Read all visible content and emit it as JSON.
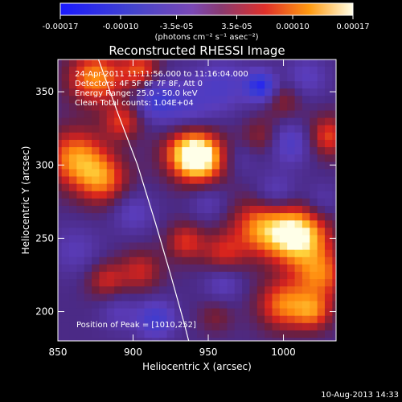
{
  "chart_data": {
    "type": "heatmap",
    "title": "Reconstructed RHESSI Image",
    "xlabel": "Heliocentric X (arcsec)",
    "ylabel": "Heliocentric Y (arcsec)",
    "xlim": [
      850,
      1035
    ],
    "ylim": [
      180,
      372
    ],
    "x_ticks": [
      850,
      900,
      950,
      1000
    ],
    "y_ticks": [
      200,
      250,
      300,
      350
    ],
    "colorbar": {
      "unit_label": "(photons cm⁻² s⁻¹ asec⁻²)",
      "range": [
        -0.00017,
        0.00017
      ],
      "tick_labels": [
        "-0.00017",
        "-0.00010",
        "-3.5e-05",
        "3.5e-05",
        "0.00010",
        "0.00017"
      ],
      "tick_values": [
        -0.00017,
        -0.0001,
        -3.5e-05,
        3.5e-05,
        0.0001,
        0.00017
      ]
    },
    "annotations": [
      "24-Apr-2011 11:11:56.000 to 11:16:04.000",
      "Detectors: 4F 5F 6F 7F 8F, Att 0",
      "Energy Range: 25.0 - 50.0 keV",
      "Clean     Total counts: 1.04E+04"
    ],
    "peak_label": "Position of Peak = [1010,252]",
    "peak": {
      "x": 1010,
      "y": 252
    },
    "limb_curve": [
      {
        "x": 877,
        "y": 372
      },
      {
        "x": 890,
        "y": 335
      },
      {
        "x": 903,
        "y": 300
      },
      {
        "x": 915,
        "y": 260
      },
      {
        "x": 925,
        "y": 225
      },
      {
        "x": 934,
        "y": 192
      },
      {
        "x": 937,
        "y": 180
      }
    ],
    "blobs": [
      {
        "x": 1010,
        "y": 252,
        "v": 0.00017,
        "s": 14
      },
      {
        "x": 985,
        "y": 258,
        "v": 0.00011,
        "s": 14
      },
      {
        "x": 1025,
        "y": 225,
        "v": 0.0001,
        "s": 12
      },
      {
        "x": 960,
        "y": 240,
        "v": 7e-05,
        "s": 10
      },
      {
        "x": 1000,
        "y": 205,
        "v": 0.00011,
        "s": 12
      },
      {
        "x": 1030,
        "y": 320,
        "v": 9e-05,
        "s": 10
      },
      {
        "x": 945,
        "y": 305,
        "v": 0.00016,
        "s": 12
      },
      {
        "x": 935,
        "y": 310,
        "v": 9e-05,
        "s": 12
      },
      {
        "x": 862,
        "y": 305,
        "v": 0.00012,
        "s": 14
      },
      {
        "x": 880,
        "y": 290,
        "v": 0.0001,
        "s": 12
      },
      {
        "x": 893,
        "y": 330,
        "v": 8e-05,
        "s": 9
      },
      {
        "x": 875,
        "y": 360,
        "v": 0.00012,
        "s": 13
      },
      {
        "x": 905,
        "y": 365,
        "v": 9e-05,
        "s": 9
      },
      {
        "x": 935,
        "y": 248,
        "v": 8e-05,
        "s": 9
      },
      {
        "x": 905,
        "y": 228,
        "v": 7e-05,
        "s": 10
      },
      {
        "x": 882,
        "y": 222,
        "v": 7e-05,
        "s": 9
      },
      {
        "x": 985,
        "y": 320,
        "v": 5e-05,
        "s": 9
      },
      {
        "x": 1000,
        "y": 345,
        "v": 5e-05,
        "s": 9
      },
      {
        "x": 955,
        "y": 197,
        "v": 4e-05,
        "s": 8
      },
      {
        "x": 1020,
        "y": 200,
        "v": 9e-05,
        "s": 9
      },
      {
        "x": 862,
        "y": 242,
        "v": -4e-05,
        "s": 12
      },
      {
        "x": 935,
        "y": 340,
        "v": -6e-05,
        "s": 14
      },
      {
        "x": 960,
        "y": 355,
        "v": -6e-05,
        "s": 12
      },
      {
        "x": 985,
        "y": 354,
        "v": -0.00014,
        "s": 7
      },
      {
        "x": 915,
        "y": 345,
        "v": -8e-05,
        "s": 9
      },
      {
        "x": 1005,
        "y": 315,
        "v": -7e-05,
        "s": 10
      },
      {
        "x": 995,
        "y": 280,
        "v": -6e-05,
        "s": 10
      },
      {
        "x": 1025,
        "y": 275,
        "v": -4e-05,
        "s": 9
      },
      {
        "x": 900,
        "y": 268,
        "v": -5e-05,
        "s": 10
      },
      {
        "x": 950,
        "y": 275,
        "v": -4e-05,
        "s": 9
      },
      {
        "x": 915,
        "y": 195,
        "v": -9e-05,
        "s": 9
      },
      {
        "x": 890,
        "y": 200,
        "v": -4e-05,
        "s": 9
      },
      {
        "x": 960,
        "y": 220,
        "v": -5e-05,
        "s": 9
      },
      {
        "x": 1015,
        "y": 360,
        "v": -5e-05,
        "s": 10
      },
      {
        "x": 970,
        "y": 305,
        "v": -3e-05,
        "s": 9
      }
    ]
  },
  "footer": {
    "timestamp": "10-Aug-2013 14:33"
  }
}
